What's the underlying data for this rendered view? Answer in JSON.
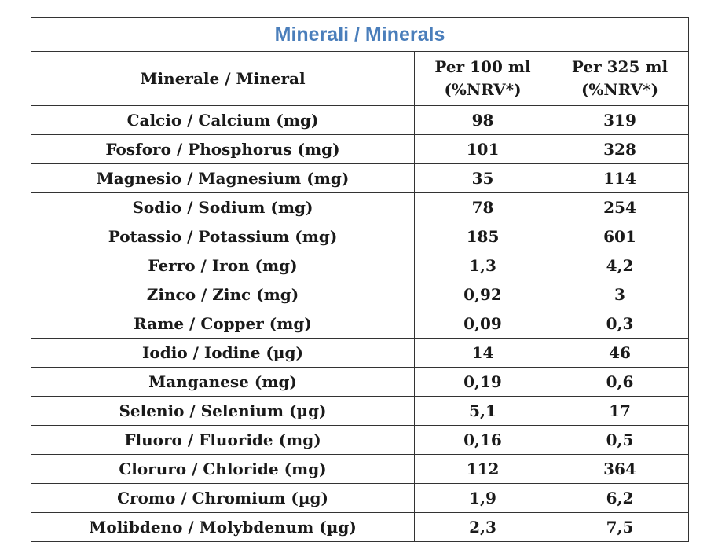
{
  "table": {
    "title": "Minerali / Minerals",
    "header": [
      [
        "Minerale / Mineral"
      ],
      [
        "Per 100 ml",
        "(%NRV*)"
      ],
      [
        "Per 325 ml",
        "(%NRV*)"
      ]
    ],
    "rows": [
      [
        "Calcio / Calcium (mg)",
        "98",
        "319"
      ],
      [
        "Fosforo / Phosphorus (mg)",
        "101",
        "328"
      ],
      [
        "Magnesio / Magnesium (mg)",
        "35",
        "114"
      ],
      [
        "Sodio / Sodium (mg)",
        "78",
        "254"
      ],
      [
        "Potassio / Potassium (mg)",
        "185",
        "601"
      ],
      [
        "Ferro / Iron (mg)",
        "1,3",
        "4,2"
      ],
      [
        "Zinco / Zinc (mg)",
        "0,92",
        "3"
      ],
      [
        "Rame / Copper (mg)",
        "0,09",
        "0,3"
      ],
      [
        "Iodio / Iodine (µg)",
        "14",
        "46"
      ],
      [
        "Manganese (mg)",
        "0,19",
        "0,6"
      ],
      [
        "Selenio / Selenium (µg)",
        "5,1",
        "17"
      ],
      [
        "Fluoro / Fluoride (mg)",
        "0,16",
        "0,5"
      ],
      [
        "Cloruro / Chloride (mg)",
        "112",
        "364"
      ],
      [
        "Cromo / Chromium (µg)",
        "1,9",
        "6,2"
      ],
      [
        "Molibdeno / Molybdenum (µg)",
        "2,3",
        "7,5"
      ]
    ]
  }
}
